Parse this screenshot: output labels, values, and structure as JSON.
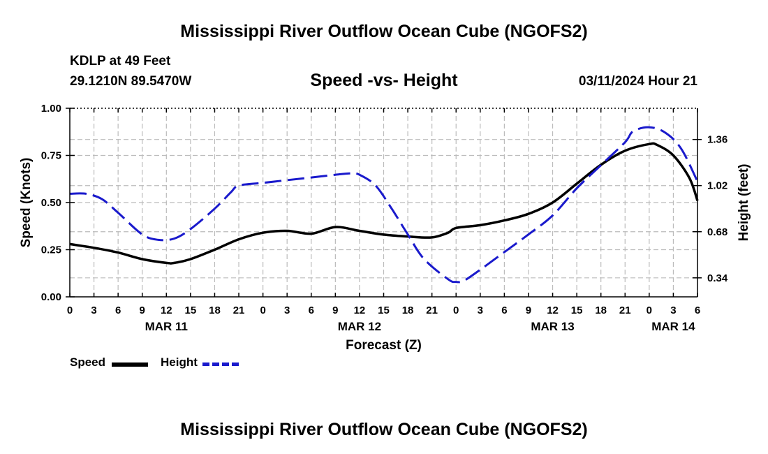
{
  "header": {
    "title": "Mississippi River Outflow Ocean Cube (NGOFS2)",
    "station": "KDLP at 49 Feet",
    "coords": "29.1210N  89.5470W",
    "subtitle": "Speed -vs- Height",
    "datetime": "03/11/2024 Hour 21"
  },
  "legend": {
    "speed": "Speed",
    "height": "Height"
  },
  "footer": {
    "title": "Mississippi River Outflow Ocean Cube (NGOFS2)"
  },
  "colors": {
    "speed": "#000000",
    "height": "#1a1acc",
    "grid": "#bbbbbb"
  },
  "chart_data": {
    "type": "line",
    "title": "Speed -vs- Height",
    "xlabel": "Forecast (Z)",
    "ylabel": "Speed (Knots)",
    "y2label": "Height (feet)",
    "xlim": [
      0,
      78
    ],
    "ylim": [
      0,
      1.0
    ],
    "y2lim": [
      0.2,
      1.59
    ],
    "x_ticks": [
      0,
      3,
      6,
      9,
      12,
      15,
      18,
      21,
      24,
      27,
      30,
      33,
      36,
      39,
      42,
      45,
      48,
      51,
      54,
      57,
      60,
      63,
      66,
      69,
      72,
      75,
      78
    ],
    "x_tick_labels": [
      "0",
      "3",
      "6",
      "9",
      "12",
      "15",
      "18",
      "21",
      "0",
      "3",
      "6",
      "9",
      "12",
      "15",
      "18",
      "21",
      "0",
      "3",
      "6",
      "9",
      "12",
      "15",
      "18",
      "21",
      "0",
      "3",
      "6"
    ],
    "date_labels": [
      {
        "x": 12,
        "label": "MAR 11"
      },
      {
        "x": 36,
        "label": "MAR 12"
      },
      {
        "x": 60,
        "label": "MAR 13"
      },
      {
        "x": 75,
        "label": "MAR 14"
      }
    ],
    "y_ticks": [
      0.0,
      0.25,
      0.5,
      0.75,
      1.0
    ],
    "y_tick_labels": [
      "0.00",
      "0.25",
      "0.50",
      "0.75",
      "1.00"
    ],
    "y2_ticks": [
      0.34,
      0.68,
      1.02,
      1.36
    ],
    "y2_tick_labels": [
      "0.34",
      "0.68",
      "1.02",
      "1.36"
    ],
    "grid": true,
    "series": [
      {
        "name": "Speed",
        "axis": "left",
        "style": "solid",
        "x": [
          0,
          3,
          6,
          9,
          12,
          13,
          15,
          18,
          21,
          24,
          27,
          30,
          33,
          36,
          39,
          42,
          45,
          47,
          48,
          51,
          54,
          57,
          60,
          63,
          66,
          69,
          72,
          73,
          75,
          77,
          78
        ],
        "values": [
          0.28,
          0.26,
          0.235,
          0.2,
          0.18,
          0.18,
          0.2,
          0.25,
          0.305,
          0.34,
          0.35,
          0.335,
          0.37,
          0.35,
          0.33,
          0.32,
          0.315,
          0.34,
          0.365,
          0.38,
          0.405,
          0.44,
          0.5,
          0.6,
          0.7,
          0.775,
          0.81,
          0.805,
          0.75,
          0.63,
          0.51
        ]
      },
      {
        "name": "Height",
        "axis": "right",
        "style": "dashed",
        "x": [
          0,
          2,
          4,
          6,
          9,
          11,
          13,
          15,
          18,
          20,
          21,
          24,
          27,
          30,
          33,
          35,
          36,
          38,
          40,
          42,
          44,
          47,
          48,
          49,
          51,
          54,
          57,
          60,
          63,
          66,
          69,
          70,
          72,
          74,
          76,
          78
        ],
        "values": [
          0.96,
          0.96,
          0.92,
          0.82,
          0.66,
          0.62,
          0.63,
          0.7,
          0.85,
          0.97,
          1.02,
          1.04,
          1.06,
          1.08,
          1.1,
          1.11,
          1.1,
          1.02,
          0.85,
          0.66,
          0.48,
          0.33,
          0.31,
          0.32,
          0.4,
          0.53,
          0.66,
          0.8,
          1.0,
          1.17,
          1.34,
          1.42,
          1.45,
          1.41,
          1.29,
          1.05
        ]
      }
    ]
  }
}
